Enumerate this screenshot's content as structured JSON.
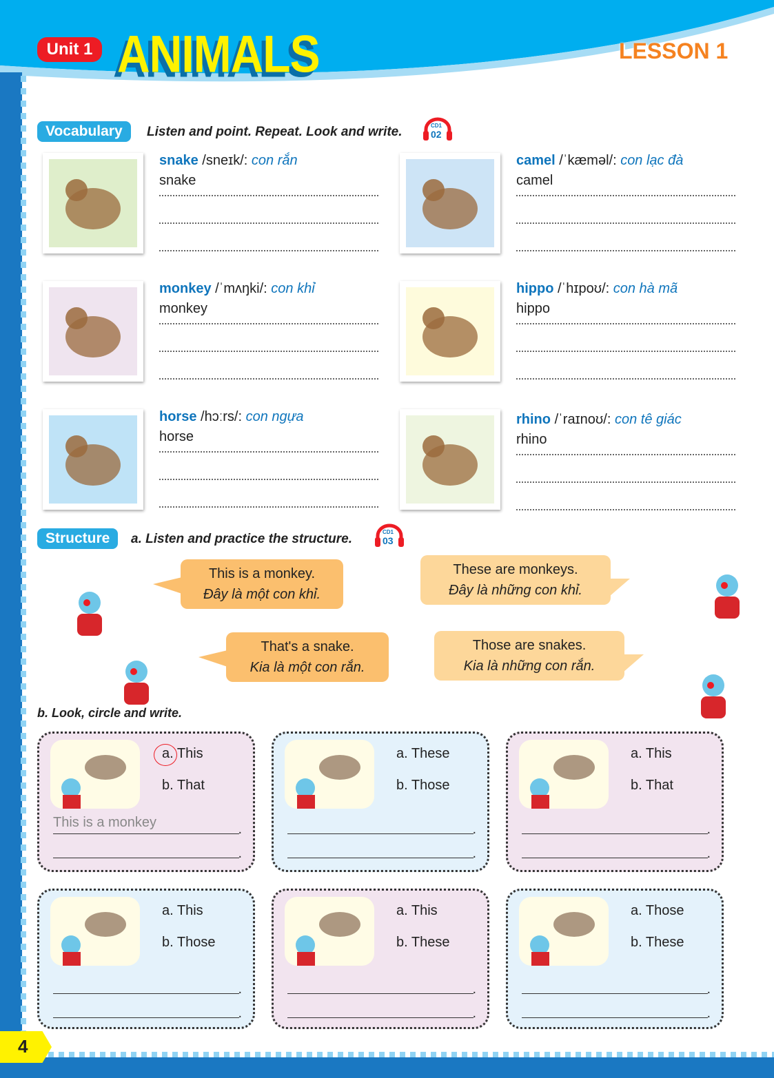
{
  "header": {
    "unit": "Unit 1",
    "title": "ANIMALS",
    "lesson": "LESSON 1"
  },
  "vocabulary": {
    "tag": "Vocabulary",
    "instruction": "Listen and point. Repeat. Look and write.",
    "cd": {
      "label": "CD1",
      "track": "02"
    },
    "items": [
      {
        "word": "snake",
        "phonetic": "/sneɪk/:",
        "meaning": "con rắn",
        "written": "snake",
        "bg": "#dfeecb"
      },
      {
        "word": "camel",
        "phonetic": "/ˈkæməl/:",
        "meaning": "con lạc đà",
        "written": "camel",
        "bg": "#cde4f6"
      },
      {
        "word": "monkey",
        "phonetic": "/ˈmʌŋki/:",
        "meaning": "con khỉ",
        "written": "monkey",
        "bg": "#efe4ef"
      },
      {
        "word": "hippo",
        "phonetic": "/ˈhɪpoʊ/:",
        "meaning": "con hà mã",
        "written": "hippo",
        "bg": "#fefbdc"
      },
      {
        "word": "horse",
        "phonetic": "/hɔːrs/:",
        "meaning": "con ngựa",
        "written": "horse",
        "bg": "#bfe3f7"
      },
      {
        "word": "rhino",
        "phonetic": "/ˈraɪnoʊ/:",
        "meaning": "con tê giác",
        "written": "rhino",
        "bg": "#eef5e0"
      }
    ]
  },
  "structure": {
    "tag": "Structure",
    "instruction": "a. Listen and practice the structure.",
    "cd": {
      "label": "CD1",
      "track": "03"
    },
    "bubbles": [
      {
        "en": "This is a monkey.",
        "vi": "Đây là một con khỉ.",
        "color": "#fbbf6e"
      },
      {
        "en": "These are monkeys.",
        "vi": "Đây là những con khỉ.",
        "color": "#fdd79a"
      },
      {
        "en": "That's a snake.",
        "vi": "Kia là một con rắn.",
        "color": "#fbbf6e"
      },
      {
        "en": "Those are snakes.",
        "vi": "Kia là những con rắn.",
        "color": "#fdd79a"
      }
    ]
  },
  "practice": {
    "instruction": "b. Look, circle and write.",
    "boxes": [
      {
        "a": "a. This",
        "b": "b. That",
        "answer": "This is a monkey",
        "circled": "a",
        "scene": "girl and monkey"
      },
      {
        "a": "a. These",
        "b": "b. Those",
        "answer": "",
        "scene": "camels"
      },
      {
        "a": "a. This",
        "b": "b. That",
        "answer": "",
        "scene": "snake"
      },
      {
        "a": "a. This",
        "b": "b. Those",
        "answer": "",
        "scene": "hippo"
      },
      {
        "a": "a. This",
        "b": "b. These",
        "answer": "",
        "scene": "horse"
      },
      {
        "a": "a. Those",
        "b": "b. These",
        "answer": "",
        "scene": "rhinos"
      }
    ]
  },
  "page_number": "4",
  "colors": {
    "brand_blue": "#1a78c2",
    "accent_blue": "#29abe2",
    "title_yellow": "#fff200",
    "lesson_orange": "#f58220",
    "unit_red": "#ed1c24"
  }
}
